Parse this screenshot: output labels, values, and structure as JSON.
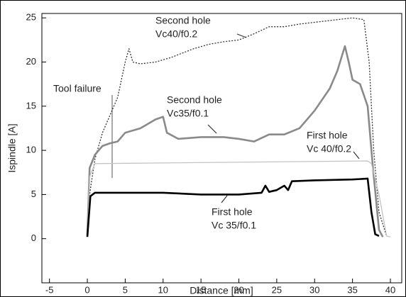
{
  "chart_data": {
    "type": "line",
    "xlabel": "Distance [mm]",
    "ylabel": "Ispindle [A]",
    "xlim": [
      -6,
      41.5
    ],
    "ylim": [
      -5,
      25.5
    ],
    "xticks": [
      -5,
      0,
      5,
      10,
      15,
      20,
      25,
      30,
      35,
      40
    ],
    "yticks": [
      0,
      5,
      10,
      15,
      20,
      25
    ],
    "grid": false,
    "annotations": [
      "Tool failure"
    ],
    "series": [
      {
        "label": [
          "Second hole",
          "Vc40/f0.2"
        ],
        "color": "#333333",
        "style": "dotted",
        "x": [
          0,
          0.3,
          1,
          2,
          3,
          4,
          5,
          5.5,
          6,
          7,
          9,
          11,
          14,
          16,
          18,
          20,
          22,
          24,
          26,
          28,
          30,
          33,
          35,
          36.5,
          37.2,
          37.8,
          38.5,
          39.5
        ],
        "values": [
          0.3,
          5,
          9,
          12,
          14,
          16,
          20,
          21.5,
          20,
          19.8,
          20,
          20.5,
          21.5,
          22,
          22.3,
          22.5,
          23.2,
          24,
          24,
          24.3,
          24.5,
          24.8,
          25,
          24.8,
          20,
          10,
          3,
          0.3
        ]
      },
      {
        "label": [
          "Second hole",
          "Vc35/f0.1"
        ],
        "color": "#8a8a8a",
        "style": "thick",
        "x": [
          0,
          0.3,
          1,
          2,
          3,
          4,
          5,
          7,
          9,
          10,
          10.5,
          12,
          15,
          18,
          20,
          22,
          24,
          26,
          28,
          30,
          32,
          33,
          34,
          34.5,
          35,
          36,
          37,
          37.7,
          38.5,
          39
        ],
        "values": [
          0.3,
          8,
          9.5,
          10.5,
          10.8,
          11,
          12,
          12.5,
          13.5,
          13.8,
          12,
          11.3,
          11.5,
          11.5,
          11.3,
          11,
          11.8,
          11.8,
          12.5,
          14.5,
          17,
          19,
          21.8,
          20,
          18,
          17.5,
          15,
          8,
          1,
          0.2
        ]
      },
      {
        "label": [
          "First hole",
          "Vc 40/f0.2"
        ],
        "color": "#c4c4c4",
        "style": "thin",
        "x": [
          0,
          0.3,
          1,
          37,
          37.5,
          38.5,
          39.5,
          40
        ],
        "values": [
          0.3,
          7,
          8.5,
          8.8,
          8.5,
          5,
          0.3,
          0.2
        ]
      },
      {
        "label": [
          "First hole",
          "Vc 35/f0.1"
        ],
        "color": "#000000",
        "style": "thick",
        "x": [
          0,
          0.4,
          1,
          10,
          15,
          20,
          23,
          23.5,
          24,
          25,
          26,
          26.5,
          27,
          30,
          35,
          37,
          37.5,
          38,
          38.5
        ],
        "values": [
          0.2,
          4.8,
          5.2,
          5.2,
          5,
          5,
          5.2,
          6,
          5.3,
          5.5,
          6,
          5.5,
          6.5,
          6.6,
          6.7,
          6.8,
          3,
          0.5,
          0.3
        ]
      }
    ]
  }
}
